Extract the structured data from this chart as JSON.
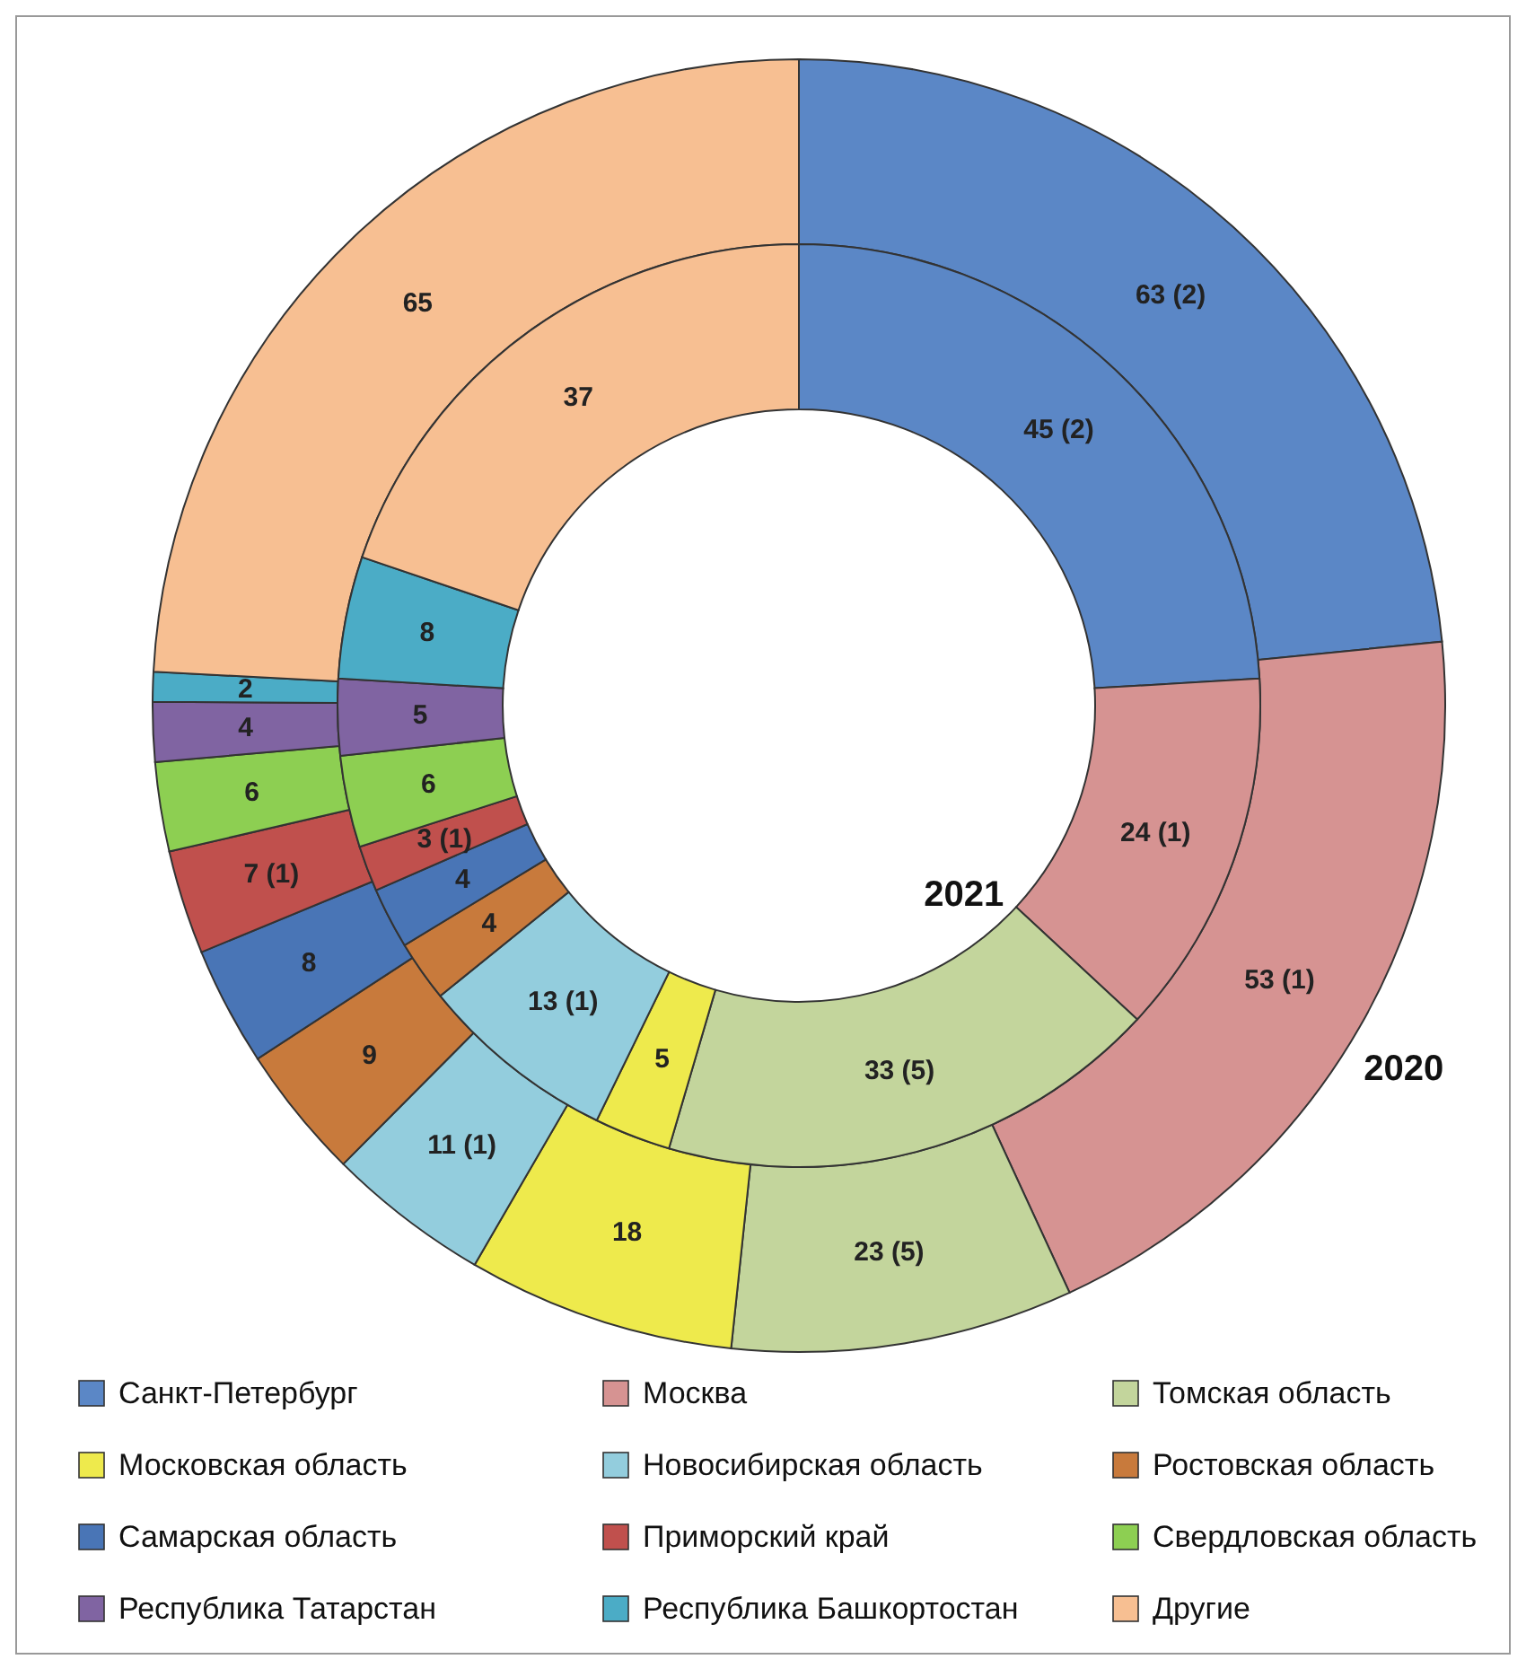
{
  "chart_data": {
    "type": "donut",
    "categories": [
      "Санкт-Петербург",
      "Москва",
      "Томская область",
      "Московская область",
      "Новосибирская область",
      "Ростовская область",
      "Самарская область",
      "Приморский край",
      "Свердловская область",
      "Республика Татарстан",
      "Республика Башкортостан",
      "Другие"
    ],
    "colors": [
      "#5b87c6",
      "#d69392",
      "#c3d59c",
      "#eeea4c",
      "#93cddd",
      "#c87a3c",
      "#4975b6",
      "#c0504d",
      "#8dcf52",
      "#8064a2",
      "#4bacc6",
      "#f7bf92"
    ],
    "series": [
      {
        "name": "2020",
        "values": [
          63,
          53,
          23,
          18,
          11,
          9,
          8,
          7,
          6,
          4,
          2,
          65
        ],
        "value_labels": [
          "63 (2)",
          "53 (1)",
          "23 (5)",
          "18",
          "11 (1)",
          "9",
          "8",
          "7 (1)",
          "6",
          "4",
          "2",
          "65"
        ]
      },
      {
        "name": "2021",
        "values": [
          45,
          24,
          33,
          5,
          13,
          4,
          4,
          3,
          6,
          5,
          8,
          37
        ],
        "value_labels": [
          "45 (2)",
          "24 (1)",
          "33 (5)",
          "5",
          "13 (1)",
          "4",
          "4",
          "3 (1)",
          "6",
          "5",
          "8",
          "37"
        ]
      }
    ],
    "legend": "bottom"
  }
}
